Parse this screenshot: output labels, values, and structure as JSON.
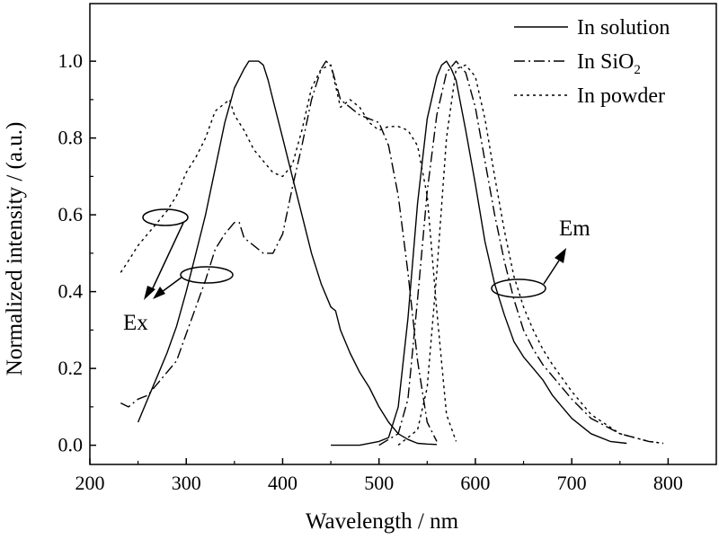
{
  "chart_data": {
    "type": "line",
    "xlabel": "Wavelength / nm",
    "ylabel": "Normalized intensity / (a.u.)",
    "xlim": [
      200,
      850
    ],
    "ylim": [
      -0.05,
      1.15
    ],
    "xticks": [
      200,
      300,
      400,
      500,
      600,
      700,
      800
    ],
    "xtick_labels": [
      "200",
      "300",
      "400",
      "500",
      "600",
      "700",
      "800"
    ],
    "yticks": [
      0.0,
      0.2,
      0.4,
      0.6,
      0.8,
      1.0
    ],
    "ytick_labels": [
      "0.0",
      "0.2",
      "0.4",
      "0.6",
      "0.8",
      "1.0"
    ],
    "grid": false,
    "legend_position": "top-right",
    "legend": [
      {
        "label": "In solution",
        "subscript": "",
        "style": "solid"
      },
      {
        "label": "In SiO",
        "subscript": "2",
        "style": "dashdot"
      },
      {
        "label": "In powder",
        "subscript": "",
        "style": "dotted"
      }
    ],
    "annotations": {
      "ex": "Ex",
      "em": "Em"
    },
    "series": [
      {
        "style": "solid",
        "role": "excitation",
        "x": [
          250,
          260,
          270,
          280,
          290,
          300,
          310,
          320,
          330,
          340,
          350,
          360,
          365,
          370,
          375,
          380,
          385,
          390,
          400,
          410,
          420,
          430,
          440,
          450,
          455,
          460,
          470,
          480,
          490,
          500,
          510,
          520,
          530,
          540,
          550,
          560
        ],
        "y": [
          0.06,
          0.12,
          0.18,
          0.24,
          0.31,
          0.4,
          0.5,
          0.6,
          0.72,
          0.84,
          0.93,
          0.98,
          1.0,
          1.0,
          1.0,
          0.99,
          0.95,
          0.9,
          0.8,
          0.7,
          0.6,
          0.5,
          0.42,
          0.36,
          0.35,
          0.3,
          0.24,
          0.19,
          0.15,
          0.1,
          0.06,
          0.03,
          0.015,
          0.005,
          0.003,
          0.002
        ]
      },
      {
        "style": "solid",
        "role": "emission",
        "x": [
          450,
          480,
          500,
          510,
          520,
          530,
          540,
          550,
          560,
          565,
          570,
          575,
          580,
          590,
          600,
          610,
          620,
          630,
          640,
          650,
          660,
          670,
          680,
          690,
          700,
          720,
          740,
          757
        ],
        "y": [
          0.0,
          0.0,
          0.01,
          0.02,
          0.1,
          0.33,
          0.63,
          0.85,
          0.96,
          0.99,
          1.0,
          0.98,
          0.95,
          0.82,
          0.68,
          0.53,
          0.42,
          0.34,
          0.27,
          0.23,
          0.2,
          0.17,
          0.13,
          0.1,
          0.07,
          0.03,
          0.01,
          0.005
        ]
      },
      {
        "style": "dashdot",
        "role": "excitation",
        "x": [
          232,
          240,
          250,
          260,
          270,
          280,
          290,
          300,
          310,
          320,
          330,
          340,
          350,
          355,
          360,
          370,
          380,
          390,
          400,
          410,
          420,
          430,
          440,
          445,
          450,
          460,
          470,
          480,
          490,
          500,
          510,
          520,
          530,
          540,
          550,
          560
        ],
        "y": [
          0.11,
          0.1,
          0.12,
          0.13,
          0.16,
          0.19,
          0.22,
          0.29,
          0.36,
          0.43,
          0.51,
          0.55,
          0.58,
          0.58,
          0.54,
          0.52,
          0.5,
          0.5,
          0.55,
          0.67,
          0.78,
          0.9,
          0.98,
          1.0,
          0.99,
          0.9,
          0.88,
          0.86,
          0.85,
          0.84,
          0.78,
          0.65,
          0.45,
          0.22,
          0.06,
          0.01
        ]
      },
      {
        "style": "dashdot",
        "role": "emission",
        "x": [
          500,
          520,
          530,
          540,
          550,
          560,
          570,
          580,
          590,
          600,
          610,
          620,
          630,
          640,
          650,
          660,
          670,
          680,
          700,
          720,
          750,
          780,
          795
        ],
        "y": [
          0.0,
          0.03,
          0.12,
          0.38,
          0.66,
          0.86,
          0.97,
          1.0,
          0.97,
          0.88,
          0.74,
          0.6,
          0.48,
          0.38,
          0.3,
          0.25,
          0.21,
          0.18,
          0.12,
          0.07,
          0.03,
          0.01,
          0.005
        ]
      },
      {
        "style": "dotted",
        "role": "excitation",
        "x": [
          232,
          240,
          250,
          260,
          270,
          280,
          290,
          300,
          310,
          320,
          330,
          340,
          345,
          350,
          360,
          370,
          380,
          390,
          400,
          410,
          420,
          430,
          440,
          450,
          460,
          470,
          480,
          490,
          500,
          510,
          520,
          530,
          540,
          550,
          560,
          570,
          580
        ],
        "y": [
          0.45,
          0.48,
          0.52,
          0.55,
          0.58,
          0.61,
          0.65,
          0.71,
          0.75,
          0.8,
          0.87,
          0.89,
          0.9,
          0.86,
          0.82,
          0.77,
          0.74,
          0.71,
          0.7,
          0.73,
          0.82,
          0.93,
          0.98,
          0.99,
          0.88,
          0.9,
          0.88,
          0.84,
          0.82,
          0.83,
          0.83,
          0.82,
          0.78,
          0.65,
          0.35,
          0.08,
          0.01
        ]
      },
      {
        "style": "dotted",
        "role": "emission",
        "x": [
          520,
          540,
          550,
          560,
          570,
          580,
          590,
          600,
          610,
          620,
          630,
          640,
          650,
          660,
          670,
          680,
          700,
          720,
          750,
          780,
          795
        ],
        "y": [
          0.0,
          0.04,
          0.15,
          0.45,
          0.8,
          0.98,
          0.99,
          0.96,
          0.85,
          0.7,
          0.56,
          0.44,
          0.36,
          0.3,
          0.25,
          0.21,
          0.14,
          0.08,
          0.03,
          0.01,
          0.005
        ]
      }
    ]
  }
}
